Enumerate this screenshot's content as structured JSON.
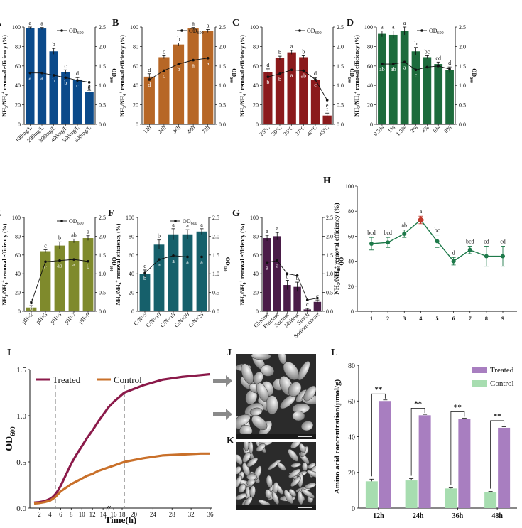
{
  "figure": {
    "chart_data": [
      {
        "panel": "A",
        "type": "bar",
        "categories": [
          "100mg/L",
          "200mg/L",
          "300mg/L",
          "400mg/L",
          "500mg/L",
          "600mg/L"
        ],
        "values": [
          99,
          98.5,
          75,
          54,
          46,
          33
        ],
        "errors": [
          1,
          1,
          3,
          2,
          2,
          2
        ],
        "bar_letters": [
          "a",
          "a",
          "b",
          "c",
          "d",
          "e"
        ],
        "od": [
          1.32,
          1.32,
          1.26,
          1.2,
          1.13,
          1.08
        ],
        "od_letters": [
          "a",
          "a",
          "b",
          "b",
          "c",
          "d"
        ],
        "ylabel": "NH3/NH4+ removal efficiency (%)",
        "y2label": "OD600",
        "legend": "OD600",
        "ylim": [
          0,
          100
        ],
        "y2lim": [
          0,
          2.5
        ],
        "yticks": [
          "0",
          "20",
          "40",
          "60",
          "80",
          "100"
        ],
        "y2ticks": [
          "0.0",
          "0.5",
          "1.0",
          "1.5",
          "2.0",
          "2.5"
        ],
        "color": "#0b4a8a"
      },
      {
        "panel": "B",
        "type": "bar",
        "categories": [
          "12h",
          "24h",
          "36h",
          "48h",
          "72h"
        ],
        "values": [
          49,
          69,
          82,
          98.5,
          96
        ],
        "errors": [
          3,
          1.5,
          1.5,
          1,
          1.5
        ],
        "bar_letters": [
          "d",
          "c",
          "b",
          "a",
          "a"
        ],
        "od": [
          1.15,
          1.38,
          1.55,
          1.65,
          1.7
        ],
        "od_letters": [
          "d",
          "c",
          "b",
          "a",
          "a"
        ],
        "ylabel": "NH3/NH4+ removal efficiency (%)",
        "y2label": "OD600",
        "legend": "OD600",
        "ylim": [
          0,
          100
        ],
        "y2lim": [
          0,
          2.5
        ],
        "yticks": [
          "0",
          "20",
          "40",
          "60",
          "80",
          "100"
        ],
        "y2ticks": [
          "0.0",
          "0.5",
          "1.0",
          "1.5",
          "2.0",
          "2.5"
        ],
        "color": "#b76726"
      },
      {
        "panel": "C",
        "type": "bar",
        "categories": [
          "25°C",
          "30°C",
          "35°C",
          "37°C",
          "40°C",
          "45°C"
        ],
        "values": [
          54,
          68,
          74,
          69,
          46,
          9
        ],
        "errors": [
          3,
          2,
          2,
          1.5,
          2,
          2.5
        ],
        "bar_letters": [
          "d",
          "b",
          "a",
          "b",
          "d",
          "f"
        ],
        "od": [
          1.22,
          1.3,
          1.4,
          1.38,
          1.15,
          0.62
        ],
        "od_letters": [
          "b",
          "b",
          "a",
          "ab",
          "c",
          "e"
        ],
        "ylabel": "NH3/NH4+ removal efficiency (%)",
        "y2label": "OD600",
        "legend": "OD600",
        "ylim": [
          0,
          100
        ],
        "y2lim": [
          0,
          2.5
        ],
        "yticks": [
          "0",
          "20",
          "40",
          "60",
          "80",
          "100"
        ],
        "y2ticks": [
          "0.0",
          "0.5",
          "1.0",
          "1.5",
          "2.0",
          "2.5"
        ],
        "color": "#8b1a1c"
      },
      {
        "panel": "D",
        "type": "bar",
        "categories": [
          "0.5%",
          "1%",
          "1.5%",
          "2%",
          "4%",
          "6%",
          "8%"
        ],
        "values": [
          93,
          92,
          96,
          75,
          69,
          62,
          56
        ],
        "errors": [
          3,
          4,
          4,
          4,
          1.5,
          2,
          3
        ],
        "bar_letters": [
          "a",
          "a",
          "a",
          "b",
          "bc",
          "cd",
          "d"
        ],
        "od": [
          1.55,
          1.55,
          1.6,
          1.4,
          1.47,
          1.5,
          1.42
        ],
        "od_letters": [
          "ab",
          "ab",
          "a",
          "c",
          "",
          "",
          ""
        ],
        "ylabel": "NH3/NH4+ removal efficiency (%)",
        "y2label": "OD600",
        "legend": "OD600",
        "ylim": [
          0,
          100
        ],
        "y2lim": [
          0,
          2.5
        ],
        "yticks": [
          "0",
          "20",
          "40",
          "60",
          "80",
          "100"
        ],
        "y2ticks": [
          "0.0",
          "0.5",
          "1.0",
          "1.5",
          "2.0",
          "2.5"
        ],
        "color": "#1d6b3c"
      },
      {
        "panel": "E",
        "type": "bar",
        "categories": [
          "pH=2",
          "pH=3",
          "pH=5",
          "pH=7",
          "pH=9"
        ],
        "values": [
          4,
          64,
          70,
          75,
          78
        ],
        "errors": [
          2,
          1.5,
          4,
          2,
          2.5
        ],
        "bar_letters": [
          "d",
          "c",
          "b",
          "ab",
          "a"
        ],
        "od": [
          0.22,
          1.32,
          1.35,
          1.38,
          1.33
        ],
        "od_letters": [
          "d",
          "c",
          "ab",
          "a",
          "b"
        ],
        "ylabel": "NH3/NH4+ removal efficiency (%)",
        "y2label": "OD600",
        "legend": "OD600",
        "ylim": [
          0,
          100
        ],
        "y2lim": [
          0,
          2.5
        ],
        "yticks": [
          "0",
          "20",
          "40",
          "60",
          "80",
          "100"
        ],
        "y2ticks": [
          "0.0",
          "0.5",
          "1.0",
          "1.5",
          "2.0",
          "2.5"
        ],
        "color": "#7f8a2c"
      },
      {
        "panel": "F",
        "type": "bar",
        "categories": [
          "C/N=5",
          "C/N=10",
          "C/N=15",
          "C/N=20",
          "C/N=25"
        ],
        "values": [
          40,
          71,
          82,
          82,
          85
        ],
        "errors": [
          4,
          5,
          6,
          5,
          3
        ],
        "bar_letters": [
          "c",
          "b",
          "a",
          "a",
          "a"
        ],
        "od": [
          1.02,
          1.38,
          1.48,
          1.45,
          1.45
        ],
        "od_letters": [
          "b",
          "a",
          "a",
          "a",
          "a"
        ],
        "ylabel": "NH3/NH4+ removal efficiency (%)",
        "y2label": "OD600",
        "legend": "OD600",
        "ylim": [
          0,
          100
        ],
        "y2lim": [
          0,
          2.5
        ],
        "yticks": [
          "0",
          "20",
          "40",
          "60",
          "80",
          "100"
        ],
        "y2ticks": [
          "0.0",
          "0.5",
          "1.0",
          "1.5",
          "2.0",
          "2.5"
        ],
        "color": "#16606b"
      },
      {
        "panel": "G",
        "type": "bar",
        "categories": [
          "Glucose",
          "Fructose",
          "Sucrose",
          "Maltose",
          "Starch",
          "Sodium citrate"
        ],
        "values": [
          78,
          80,
          28,
          26,
          2,
          10
        ],
        "errors": [
          3,
          4,
          5,
          5,
          1,
          2
        ],
        "bar_letters": [
          "a",
          "a",
          "b",
          "b",
          "c",
          "c"
        ],
        "od": [
          1.3,
          1.35,
          1.0,
          0.95,
          0.3,
          0.35
        ],
        "od_letters": [
          "a",
          "a",
          "",
          "",
          "",
          ""
        ],
        "ylabel": "NH3/NH4+ removal efficiency (%)",
        "y2label": "OD600",
        "legend": "",
        "ylim": [
          0,
          100
        ],
        "y2lim": [
          0,
          2.5
        ],
        "yticks": [
          "0",
          "20",
          "40",
          "60",
          "80",
          "100"
        ],
        "y2ticks": [
          "0.0",
          "0.5",
          "1.0",
          "1.5",
          "2.0",
          "2.5"
        ],
        "color": "#4a1c48"
      },
      {
        "panel": "H",
        "type": "line",
        "x": [
          1,
          2,
          3,
          4,
          5,
          6,
          7,
          8,
          9
        ],
        "values": [
          54,
          55,
          62,
          73,
          56,
          40,
          49,
          44,
          44
        ],
        "errors": [
          5,
          4,
          3,
          3,
          5,
          3,
          3,
          8,
          8
        ],
        "letters": [
          "bcd",
          "bcd",
          "ab",
          "a",
          "bc",
          "d",
          "bcd",
          "cd",
          "cd"
        ],
        "highlight_index": 3,
        "highlight_color": "#c0392b",
        "ylabel": "NH3/NH4+ removal efficiency (%)",
        "ylim": [
          0,
          100
        ],
        "yticks": [
          "0",
          "20",
          "40",
          "60",
          "80",
          "100"
        ],
        "xticks": [
          "1",
          "2",
          "3",
          "4",
          "5",
          "6",
          "7",
          "8",
          "9"
        ],
        "color": "#1e7a4a"
      },
      {
        "panel": "I",
        "type": "line",
        "xlabel": "Time(h)",
        "ylabel": "OD600",
        "ylim": [
          0,
          1.5
        ],
        "yticks": [
          "0.0",
          "0.5",
          "1.0",
          "1.5"
        ],
        "xticks": [
          "2",
          "4",
          "6",
          "8",
          "10",
          "12",
          "14",
          "16",
          "18",
          "20",
          "24",
          "28",
          "32",
          "36"
        ],
        "series": [
          {
            "name": "Treated",
            "color": "#8b1a4a",
            "x": [
              1,
              2,
              3,
              4,
              4.5,
              5,
              5.5,
              6,
              7,
              8,
              9,
              10,
              11,
              12,
              13,
              14,
              15,
              16,
              17,
              18,
              22,
              26,
              30,
              34,
              36
            ],
            "values": [
              0.06,
              0.065,
              0.075,
              0.1,
              0.12,
              0.15,
              0.19,
              0.24,
              0.36,
              0.48,
              0.58,
              0.67,
              0.76,
              0.84,
              0.93,
              1.01,
              1.09,
              1.15,
              1.2,
              1.25,
              1.33,
              1.39,
              1.42,
              1.44,
              1.45
            ]
          },
          {
            "name": "Control",
            "color": "#c9702a",
            "x": [
              1,
              2,
              3,
              4,
              4.5,
              5,
              5.5,
              6,
              7,
              8,
              9,
              10,
              11,
              12,
              13,
              14,
              15,
              16,
              17,
              18,
              22,
              26,
              30,
              34,
              36
            ],
            "values": [
              0.05,
              0.055,
              0.065,
              0.08,
              0.1,
              0.12,
              0.15,
              0.18,
              0.22,
              0.26,
              0.29,
              0.32,
              0.35,
              0.37,
              0.4,
              0.42,
              0.44,
              0.46,
              0.48,
              0.5,
              0.54,
              0.57,
              0.58,
              0.59,
              0.59
            ]
          }
        ],
        "vlines": [
          5,
          18
        ],
        "legend": [
          "Treated",
          "Control"
        ]
      },
      {
        "panel": "L",
        "type": "bar",
        "categories": [
          "12h",
          "24h",
          "36h",
          "48h"
        ],
        "xlabel": "",
        "ylabel": "Amino acid concentration(μmol/g)",
        "ylim": [
          0,
          80
        ],
        "yticks": [
          "0",
          "20",
          "40",
          "60",
          "80"
        ],
        "series": [
          {
            "name": "Treated",
            "color": "#a87ec0",
            "values": [
              60,
              52,
              50,
              45
            ],
            "errors": [
              0.6,
              0.5,
              0.4,
              0.6
            ]
          },
          {
            "name": "Control",
            "color": "#a7ddb0",
            "values": [
              15,
              15.5,
              11,
              9
            ],
            "errors": [
              1.2,
              1,
              0.3,
              0.3
            ]
          }
        ],
        "significance": [
          "**",
          "**",
          "**",
          "**"
        ],
        "legend": [
          "Treated",
          "Control"
        ]
      }
    ],
    "images": [
      {
        "panel": "J",
        "label": "J",
        "alt": "SEM micrograph treated cells"
      },
      {
        "panel": "K",
        "label": "K",
        "alt": "SEM micrograph control cells"
      }
    ]
  }
}
